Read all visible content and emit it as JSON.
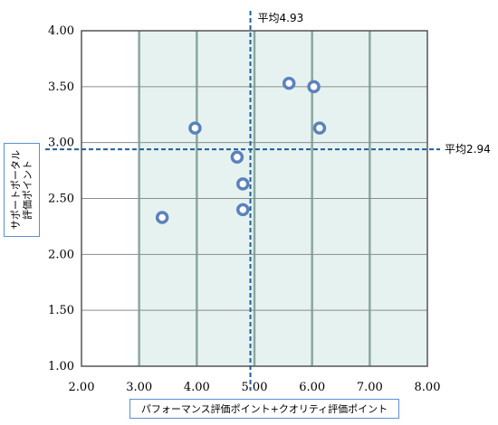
{
  "chart_data": {
    "type": "scatter",
    "xlabel": "パフォーマンス評価ポイント+クオリティ評価ポイント",
    "ylabel_lines": [
      "サポートポータル",
      "評価ポイント"
    ],
    "xlim": [
      2.0,
      8.0
    ],
    "ylim": [
      1.0,
      4.0
    ],
    "x_ticks": [
      "2.00",
      "3.00",
      "4.00",
      "5.00",
      "6.00",
      "7.00",
      "8.00"
    ],
    "y_ticks": [
      "1.00",
      "1.50",
      "2.00",
      "2.50",
      "3.00",
      "3.50",
      "4.00"
    ],
    "grid": true,
    "shaded_x_range": [
      3.0,
      8.0
    ],
    "points": [
      {
        "x": 3.4,
        "y": 2.33
      },
      {
        "x": 3.97,
        "y": 3.13
      },
      {
        "x": 4.7,
        "y": 2.87
      },
      {
        "x": 4.8,
        "y": 2.63
      },
      {
        "x": 4.8,
        "y": 2.4
      },
      {
        "x": 5.6,
        "y": 3.53
      },
      {
        "x": 6.03,
        "y": 3.5
      },
      {
        "x": 6.13,
        "y": 3.13
      }
    ],
    "avg_x": {
      "value": 4.93,
      "label": "平均4.93"
    },
    "avg_y": {
      "value": 2.94,
      "label": "平均2.94"
    },
    "colors": {
      "marker": "#5b82bd",
      "avg_line": "#1f5f9e",
      "shade": "#e6f2f0",
      "grid": "#8c8c8c"
    }
  }
}
